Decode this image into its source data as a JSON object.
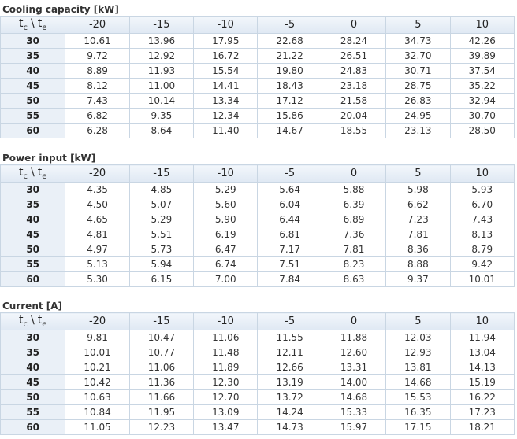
{
  "corner": [
    "t",
    "c",
    "\\",
    "t",
    "e"
  ],
  "columns": [
    "-20",
    "-15",
    "-10",
    "-5",
    "0",
    "5",
    "10"
  ],
  "tables": [
    {
      "title": "Cooling capacity [kW]",
      "rows": [
        {
          "label": "30",
          "values": [
            "10.61",
            "13.96",
            "17.95",
            "22.68",
            "28.24",
            "34.73",
            "42.26"
          ]
        },
        {
          "label": "35",
          "values": [
            "9.72",
            "12.92",
            "16.72",
            "21.22",
            "26.51",
            "32.70",
            "39.89"
          ]
        },
        {
          "label": "40",
          "values": [
            "8.89",
            "11.93",
            "15.54",
            "19.80",
            "24.83",
            "30.71",
            "37.54"
          ]
        },
        {
          "label": "45",
          "values": [
            "8.12",
            "11.00",
            "14.41",
            "18.43",
            "23.18",
            "28.75",
            "35.22"
          ]
        },
        {
          "label": "50",
          "values": [
            "7.43",
            "10.14",
            "13.34",
            "17.12",
            "21.58",
            "26.83",
            "32.94"
          ]
        },
        {
          "label": "55",
          "values": [
            "6.82",
            "9.35",
            "12.34",
            "15.86",
            "20.04",
            "24.95",
            "30.70"
          ]
        },
        {
          "label": "60",
          "values": [
            "6.28",
            "8.64",
            "11.40",
            "14.67",
            "18.55",
            "23.13",
            "28.50"
          ]
        }
      ]
    },
    {
      "title": "Power input [kW]",
      "rows": [
        {
          "label": "30",
          "values": [
            "4.35",
            "4.85",
            "5.29",
            "5.64",
            "5.88",
            "5.98",
            "5.93"
          ]
        },
        {
          "label": "35",
          "values": [
            "4.50",
            "5.07",
            "5.60",
            "6.04",
            "6.39",
            "6.62",
            "6.70"
          ]
        },
        {
          "label": "40",
          "values": [
            "4.65",
            "5.29",
            "5.90",
            "6.44",
            "6.89",
            "7.23",
            "7.43"
          ]
        },
        {
          "label": "45",
          "values": [
            "4.81",
            "5.51",
            "6.19",
            "6.81",
            "7.36",
            "7.81",
            "8.13"
          ]
        },
        {
          "label": "50",
          "values": [
            "4.97",
            "5.73",
            "6.47",
            "7.17",
            "7.81",
            "8.36",
            "8.79"
          ]
        },
        {
          "label": "55",
          "values": [
            "5.13",
            "5.94",
            "6.74",
            "7.51",
            "8.23",
            "8.88",
            "9.42"
          ]
        },
        {
          "label": "60",
          "values": [
            "5.30",
            "6.15",
            "7.00",
            "7.84",
            "8.63",
            "9.37",
            "10.01"
          ]
        }
      ]
    },
    {
      "title": "Current [A]",
      "rows": [
        {
          "label": "30",
          "values": [
            "9.81",
            "10.47",
            "11.06",
            "11.55",
            "11.88",
            "12.03",
            "11.94"
          ]
        },
        {
          "label": "35",
          "values": [
            "10.01",
            "10.77",
            "11.48",
            "12.11",
            "12.60",
            "12.93",
            "13.04"
          ]
        },
        {
          "label": "40",
          "values": [
            "10.21",
            "11.06",
            "11.89",
            "12.66",
            "13.31",
            "13.81",
            "14.13"
          ]
        },
        {
          "label": "45",
          "values": [
            "10.42",
            "11.36",
            "12.30",
            "13.19",
            "14.00",
            "14.68",
            "15.19"
          ]
        },
        {
          "label": "50",
          "values": [
            "10.63",
            "11.66",
            "12.70",
            "13.72",
            "14.68",
            "15.53",
            "16.22"
          ]
        },
        {
          "label": "55",
          "values": [
            "10.84",
            "11.95",
            "13.09",
            "14.24",
            "15.33",
            "16.35",
            "17.23"
          ]
        },
        {
          "label": "60",
          "values": [
            "11.05",
            "12.23",
            "13.47",
            "14.73",
            "15.97",
            "17.15",
            "18.21"
          ]
        }
      ]
    }
  ]
}
